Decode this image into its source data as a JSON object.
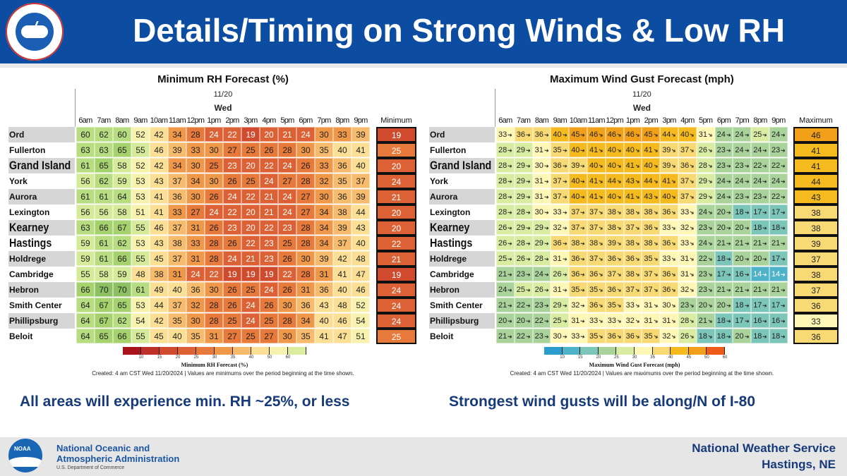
{
  "header": {
    "title": "Details/Timing on Strong Winds & Low RH",
    "logo_text": "NATIONAL WEATHER SERVICE"
  },
  "times": [
    "6am",
    "7am",
    "8am",
    "9am",
    "10am",
    "11am",
    "12pm",
    "1pm",
    "2pm",
    "3pm",
    "4pm",
    "5pm",
    "6pm",
    "7pm",
    "8pm",
    "9pm"
  ],
  "locations": [
    "Ord",
    "Fullerton",
    "Grand Island",
    "York",
    "Aurora",
    "Lexington",
    "Kearney",
    "Hastings",
    "Holdrege",
    "Cambridge",
    "Hebron",
    "Smith Center",
    "Phillipsburg",
    "Beloit"
  ],
  "rh": {
    "title": "Minimum RH Forecast (%)",
    "date": "11/20",
    "day": "Wed",
    "summary_label": "Minimum",
    "rows": [
      [
        60,
        62,
        60,
        52,
        42,
        34,
        28,
        24,
        22,
        19,
        20,
        21,
        24,
        30,
        33,
        39
      ],
      [
        63,
        63,
        65,
        55,
        46,
        39,
        33,
        30,
        27,
        25,
        26,
        28,
        30,
        35,
        40,
        41
      ],
      [
        61,
        65,
        58,
        52,
        42,
        34,
        30,
        25,
        23,
        20,
        22,
        24,
        26,
        33,
        36,
        40
      ],
      [
        56,
        62,
        59,
        53,
        43,
        37,
        34,
        30,
        26,
        25,
        24,
        27,
        28,
        32,
        35,
        37
      ],
      [
        61,
        61,
        64,
        53,
        41,
        36,
        30,
        26,
        24,
        22,
        21,
        24,
        27,
        30,
        36,
        39
      ],
      [
        56,
        56,
        58,
        51,
        41,
        33,
        27,
        24,
        22,
        20,
        21,
        24,
        27,
        34,
        38,
        44
      ],
      [
        63,
        66,
        67,
        55,
        46,
        37,
        31,
        26,
        23,
        20,
        22,
        23,
        28,
        34,
        39,
        43
      ],
      [
        59,
        61,
        62,
        53,
        43,
        38,
        33,
        28,
        26,
        22,
        23,
        25,
        28,
        34,
        37,
        40
      ],
      [
        59,
        61,
        66,
        55,
        45,
        37,
        31,
        28,
        24,
        21,
        23,
        26,
        30,
        39,
        42,
        48
      ],
      [
        55,
        58,
        59,
        48,
        38,
        31,
        24,
        22,
        19,
        19,
        19,
        22,
        28,
        31,
        41,
        47
      ],
      [
        66,
        70,
        70,
        61,
        49,
        40,
        36,
        30,
        26,
        25,
        24,
        26,
        31,
        36,
        40,
        46
      ],
      [
        64,
        67,
        65,
        53,
        44,
        37,
        32,
        28,
        26,
        24,
        26,
        30,
        36,
        43,
        48,
        52
      ],
      [
        64,
        67,
        62,
        54,
        42,
        35,
        30,
        28,
        25,
        24,
        25,
        28,
        34,
        40,
        46,
        54
      ],
      [
        64,
        65,
        66,
        55,
        45,
        40,
        35,
        31,
        27,
        25,
        27,
        30,
        35,
        41,
        47,
        51
      ]
    ],
    "summary": [
      19,
      25,
      20,
      24,
      21,
      20,
      20,
      22,
      21,
      19,
      24,
      24,
      24,
      25
    ],
    "colorbar": {
      "ticks": [
        "10",
        "15",
        "20",
        "25",
        "30",
        "35",
        "40",
        "50",
        "60"
      ],
      "label": "Minimum RH Forecast (%)",
      "colors": [
        "#a8141c",
        "#c0302a",
        "#d04a2e",
        "#dc6236",
        "#e7793a",
        "#f0984a",
        "#f6bb6c",
        "#fbdf94",
        "#f7f3ae",
        "#dcedA0"
      ]
    },
    "created": "Created: 4 am CST Wed 11/20/2024  |  Values are minimums over the period beginning at the time shown."
  },
  "wind": {
    "title": "Maximum Wind Gust Forecast (mph)",
    "date": "11/20",
    "day": "Wed",
    "summary_label": "Maximum",
    "arrow_icon": "wind-direction-arrow",
    "rows": [
      [
        33,
        36,
        36,
        40,
        45,
        46,
        46,
        46,
        45,
        44,
        40,
        31,
        24,
        24,
        25,
        24
      ],
      [
        28,
        29,
        31,
        35,
        40,
        41,
        40,
        40,
        41,
        39,
        37,
        26,
        23,
        24,
        24,
        23
      ],
      [
        28,
        29,
        30,
        36,
        39,
        40,
        40,
        41,
        40,
        39,
        36,
        28,
        23,
        23,
        22,
        22
      ],
      [
        28,
        29,
        31,
        37,
        40,
        41,
        44,
        43,
        44,
        41,
        37,
        29,
        24,
        24,
        24,
        24
      ],
      [
        28,
        29,
        31,
        37,
        40,
        41,
        40,
        41,
        43,
        40,
        37,
        29,
        24,
        23,
        23,
        22
      ],
      [
        28,
        28,
        30,
        33,
        37,
        37,
        38,
        38,
        38,
        36,
        33,
        24,
        20,
        18,
        17,
        17
      ],
      [
        26,
        29,
        29,
        32,
        37,
        37,
        38,
        37,
        36,
        33,
        32,
        23,
        20,
        20,
        18,
        18
      ],
      [
        26,
        28,
        29,
        36,
        38,
        38,
        39,
        38,
        38,
        36,
        33,
        24,
        21,
        21,
        21,
        21
      ],
      [
        25,
        26,
        28,
        31,
        36,
        37,
        36,
        36,
        35,
        33,
        31,
        22,
        18,
        20,
        20,
        17
      ],
      [
        21,
        23,
        24,
        26,
        36,
        36,
        37,
        38,
        37,
        36,
        31,
        23,
        17,
        16,
        14,
        14
      ],
      [
        24,
        25,
        26,
        31,
        35,
        35,
        36,
        37,
        37,
        36,
        32,
        23,
        21,
        21,
        21,
        21
      ],
      [
        21,
        22,
        23,
        29,
        32,
        36,
        35,
        33,
        31,
        30,
        23,
        20,
        20,
        18,
        17,
        17
      ],
      [
        20,
        20,
        22,
        25,
        31,
        33,
        33,
        32,
        31,
        31,
        28,
        21,
        18,
        17,
        16,
        16
      ],
      [
        21,
        22,
        23,
        30,
        33,
        35,
        36,
        36,
        35,
        32,
        26,
        18,
        18,
        20,
        18,
        18
      ]
    ],
    "summary": [
      46,
      41,
      41,
      44,
      43,
      38,
      38,
      39,
      37,
      38,
      37,
      36,
      33,
      36
    ],
    "colorbar": {
      "ticks": [
        "10",
        "15",
        "20",
        "25",
        "30",
        "35",
        "40",
        "45",
        "50",
        "60"
      ],
      "label": "Maximum Wind Gust Forecast (mph)",
      "colors": [
        "#2a9ccd",
        "#4eb2c8",
        "#7cc5b9",
        "#a9d39a",
        "#d8eca2",
        "#fff7b6",
        "#f8da74",
        "#f5bb1e",
        "#f2a01a",
        "#ee5a1a"
      ]
    },
    "created": "Created: 4 am CST Wed 11/20/2024  |  Values are maximums over the period beginning at the time shown."
  },
  "notes": {
    "left": "All areas will experience min. RH ~25%, or less",
    "right": "Strongest wind gusts will be along/N of I-80"
  },
  "footer": {
    "noaa_logo": "NOAA",
    "noaa_line1": "National Oceanic and",
    "noaa_line2": "Atmospheric Administration",
    "noaa_sub": "U.S. Department of Commerce",
    "nws_line1": "National Weather Service",
    "nws_line2": "Hastings, NE"
  }
}
